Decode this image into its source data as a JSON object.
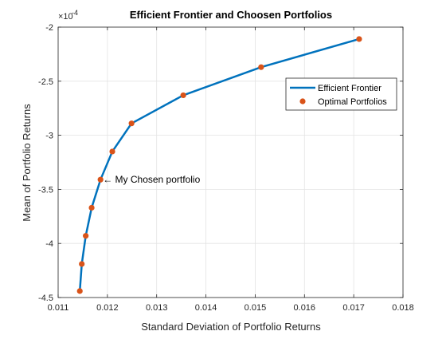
{
  "chart_data": {
    "type": "line",
    "title": "Efficient Frontier and Choosen Portfolios",
    "xlabel": "Standard Deviation of Portfolio Returns",
    "ylabel": "Mean of Portfolio Returns",
    "xlim": [
      0.011,
      0.018
    ],
    "ylim": [
      -4.5,
      -2
    ],
    "y_exponent_label": "×10",
    "y_exponent_power": "-4",
    "x_ticks": [
      0.011,
      0.012,
      0.013,
      0.014,
      0.015,
      0.016,
      0.017,
      0.018
    ],
    "x_tick_labels": [
      "0.011",
      "0.012",
      "0.013",
      "0.014",
      "0.015",
      "0.016",
      "0.017",
      "0.018"
    ],
    "y_ticks": [
      -4.5,
      -4,
      -3.5,
      -3,
      -2.5,
      -2
    ],
    "y_tick_labels": [
      "-4.5",
      "-4",
      "-3.5",
      "-3",
      "-2.5",
      "-2"
    ],
    "grid": true,
    "legend_placement": "top-right",
    "series": [
      {
        "name": "Efficient Frontier",
        "style": "line",
        "color": "#0072BD",
        "x": [
          0.01144,
          0.01148,
          0.01156,
          0.01168,
          0.01186,
          0.0121,
          0.01249,
          0.01354,
          0.01512,
          0.01711
        ],
        "y": [
          -4.44,
          -4.19,
          -3.93,
          -3.67,
          -3.41,
          -3.15,
          -2.89,
          -2.63,
          -2.37,
          -2.11
        ]
      },
      {
        "name": "Optimal Portfolios",
        "style": "markers",
        "color": "#D95319",
        "x": [
          0.01144,
          0.01148,
          0.01156,
          0.01168,
          0.01186,
          0.0121,
          0.01249,
          0.01354,
          0.01512,
          0.01711
        ],
        "y": [
          -4.44,
          -4.19,
          -3.93,
          -3.67,
          -3.41,
          -3.15,
          -2.89,
          -2.63,
          -2.37,
          -2.11
        ]
      }
    ],
    "annotations": [
      {
        "text": "← My Chosen portfolio",
        "x": 0.01186,
        "y": -3.41
      }
    ]
  }
}
